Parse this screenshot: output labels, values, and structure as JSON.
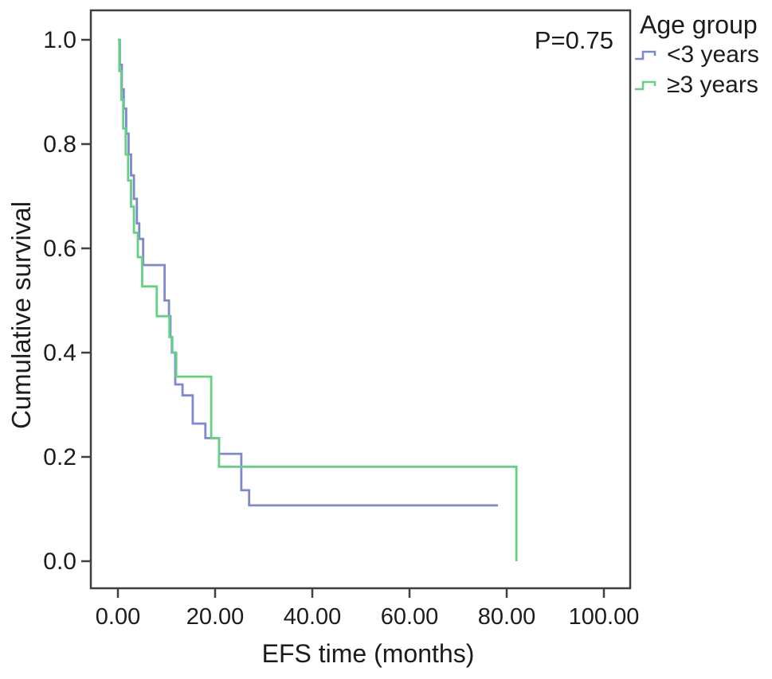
{
  "chart_data": {
    "type": "line",
    "chart_style": "kaplan-meier-survival-steps",
    "title": "",
    "annotation": "P=0.75",
    "xlabel": "EFS time (months)",
    "ylabel": "Cumulative survival",
    "xlim": [
      0,
      100
    ],
    "ylim": [
      0.0,
      1.0
    ],
    "grid": false,
    "legend_title": "Age group",
    "legend_position": "outside-top-right",
    "x_ticks": [
      {
        "value": 0,
        "label": "0.00"
      },
      {
        "value": 20,
        "label": "20.00"
      },
      {
        "value": 40,
        "label": "40.00"
      },
      {
        "value": 60,
        "label": "60.00"
      },
      {
        "value": 80,
        "label": "80.00"
      },
      {
        "value": 100,
        "label": "100.00"
      }
    ],
    "y_ticks": [
      {
        "value": 0.0,
        "label": "0.0"
      },
      {
        "value": 0.2,
        "label": "0.2"
      },
      {
        "value": 0.4,
        "label": "0.4"
      },
      {
        "value": 0.6,
        "label": "0.6"
      },
      {
        "value": 0.8,
        "label": "0.8"
      },
      {
        "value": 1.0,
        "label": "1.0"
      }
    ],
    "colors": {
      "frame": "#3f3f3f",
      "text": "#1c1c1c",
      "series_blue": "#7d88cf",
      "series_green": "#64d083"
    },
    "series": [
      {
        "name": "<3 years",
        "color": "#7d88cf",
        "steps": [
          [
            0,
            1.0
          ],
          [
            0.4,
            0.952
          ],
          [
            0.8,
            0.905
          ],
          [
            1.2,
            0.868
          ],
          [
            1.7,
            0.82
          ],
          [
            2.2,
            0.78
          ],
          [
            2.7,
            0.74
          ],
          [
            3.3,
            0.695
          ],
          [
            3.9,
            0.648
          ],
          [
            4.4,
            0.618
          ],
          [
            5.2,
            0.568
          ],
          [
            9.6,
            0.5
          ],
          [
            10.5,
            0.47
          ],
          [
            10.8,
            0.43
          ],
          [
            11.1,
            0.4
          ],
          [
            11.8,
            0.339
          ],
          [
            13.3,
            0.318
          ],
          [
            15.4,
            0.264
          ],
          [
            18.0,
            0.236
          ],
          [
            20.8,
            0.206
          ],
          [
            25.4,
            0.136
          ],
          [
            27.0,
            0.107
          ]
        ],
        "end_time": 78.2
      },
      {
        "name": "≥3 years",
        "color": "#64d083",
        "steps": [
          [
            0,
            1.0
          ],
          [
            0.3,
            0.94
          ],
          [
            0.7,
            0.885
          ],
          [
            1.1,
            0.83
          ],
          [
            1.6,
            0.78
          ],
          [
            2.1,
            0.73
          ],
          [
            2.7,
            0.68
          ],
          [
            3.3,
            0.63
          ],
          [
            4.1,
            0.583
          ],
          [
            5.0,
            0.527
          ],
          [
            8.0,
            0.47
          ],
          [
            10.6,
            0.43
          ],
          [
            11.2,
            0.4
          ],
          [
            12.0,
            0.354
          ],
          [
            19.2,
            0.236
          ],
          [
            20.8,
            0.181
          ],
          [
            82,
            0.0
          ]
        ],
        "end_time": 82
      }
    ]
  }
}
